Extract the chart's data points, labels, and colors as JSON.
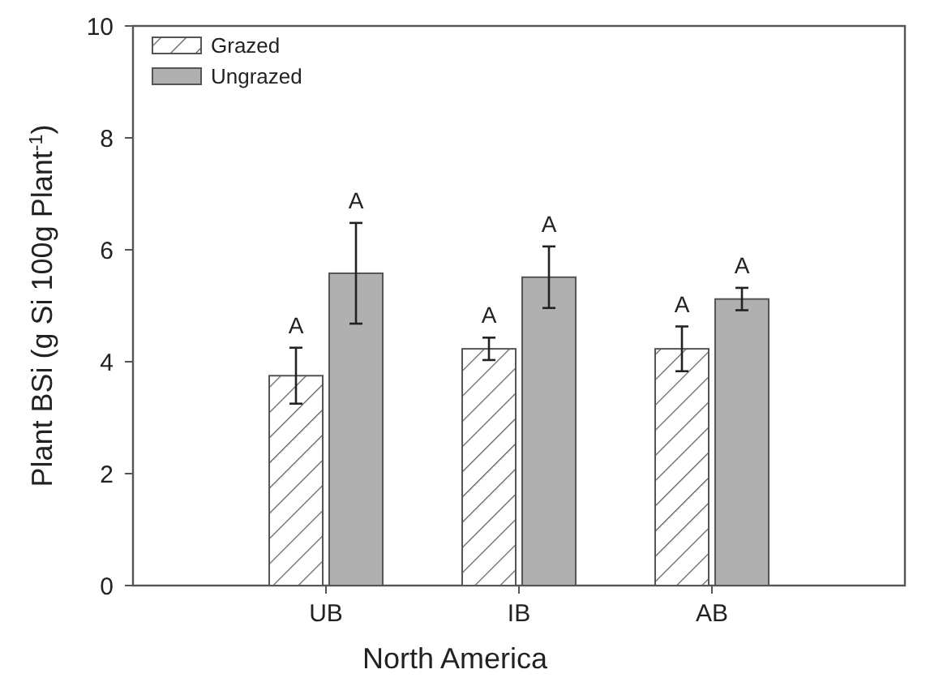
{
  "chart_data": {
    "type": "bar",
    "xlabel": "North America",
    "ylabel": "Plant BSi (g Si 100g Plant$^{-1}$)",
    "categories": [
      "UB",
      "IB",
      "AB"
    ],
    "series": [
      {
        "name": "Grazed",
        "color": "#555555",
        "values": [
          3.75,
          4.23,
          4.23
        ],
        "errors": [
          0.5,
          0.2,
          0.4
        ]
      },
      {
        "name": "Ungrazed",
        "color": "#b0b0b0",
        "values": [
          5.58,
          5.51,
          5.12
        ],
        "errors": [
          0.9,
          0.55,
          0.2
        ]
      }
    ],
    "ylim": [
      0,
      10
    ],
    "yticks": [
      0,
      2,
      4,
      6,
      8,
      10
    ],
    "legend": "top left",
    "annotations": [
      "A",
      "A",
      "A",
      "A",
      "A",
      "A"
    ]
  }
}
